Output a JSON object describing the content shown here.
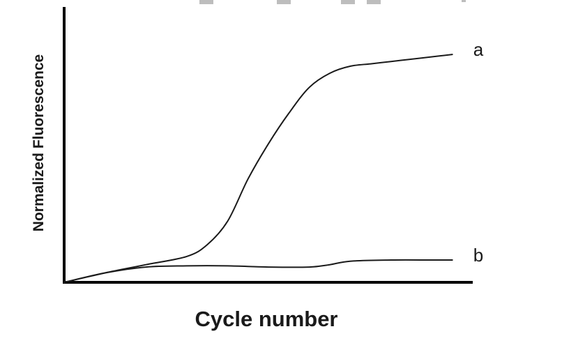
{
  "chart_data": {
    "type": "line",
    "title": "",
    "xlabel": "Cycle number",
    "ylabel": "Normalized Fluorescence",
    "xlim": [
      0,
      100
    ],
    "ylim": [
      0,
      100
    ],
    "grid": false,
    "legend": "none",
    "line_color": "#1a1a1a",
    "series": [
      {
        "name": "a",
        "x": [
          0,
          10,
          20,
          30,
          35,
          40,
          45,
          50,
          55,
          60,
          65,
          70,
          75,
          80,
          85,
          90,
          95
        ],
        "y": [
          0,
          4,
          7.5,
          11,
          16,
          26,
          44,
          59,
          72,
          83,
          89,
          92,
          93,
          94,
          95,
          96,
          97
        ]
      },
      {
        "name": "b",
        "x": [
          0,
          10,
          20,
          30,
          40,
          50,
          60,
          65,
          70,
          80,
          90,
          95
        ],
        "y": [
          0,
          4,
          6.5,
          7,
          7,
          6.5,
          6.5,
          7.5,
          9,
          9.5,
          9.5,
          9.5
        ]
      }
    ]
  }
}
